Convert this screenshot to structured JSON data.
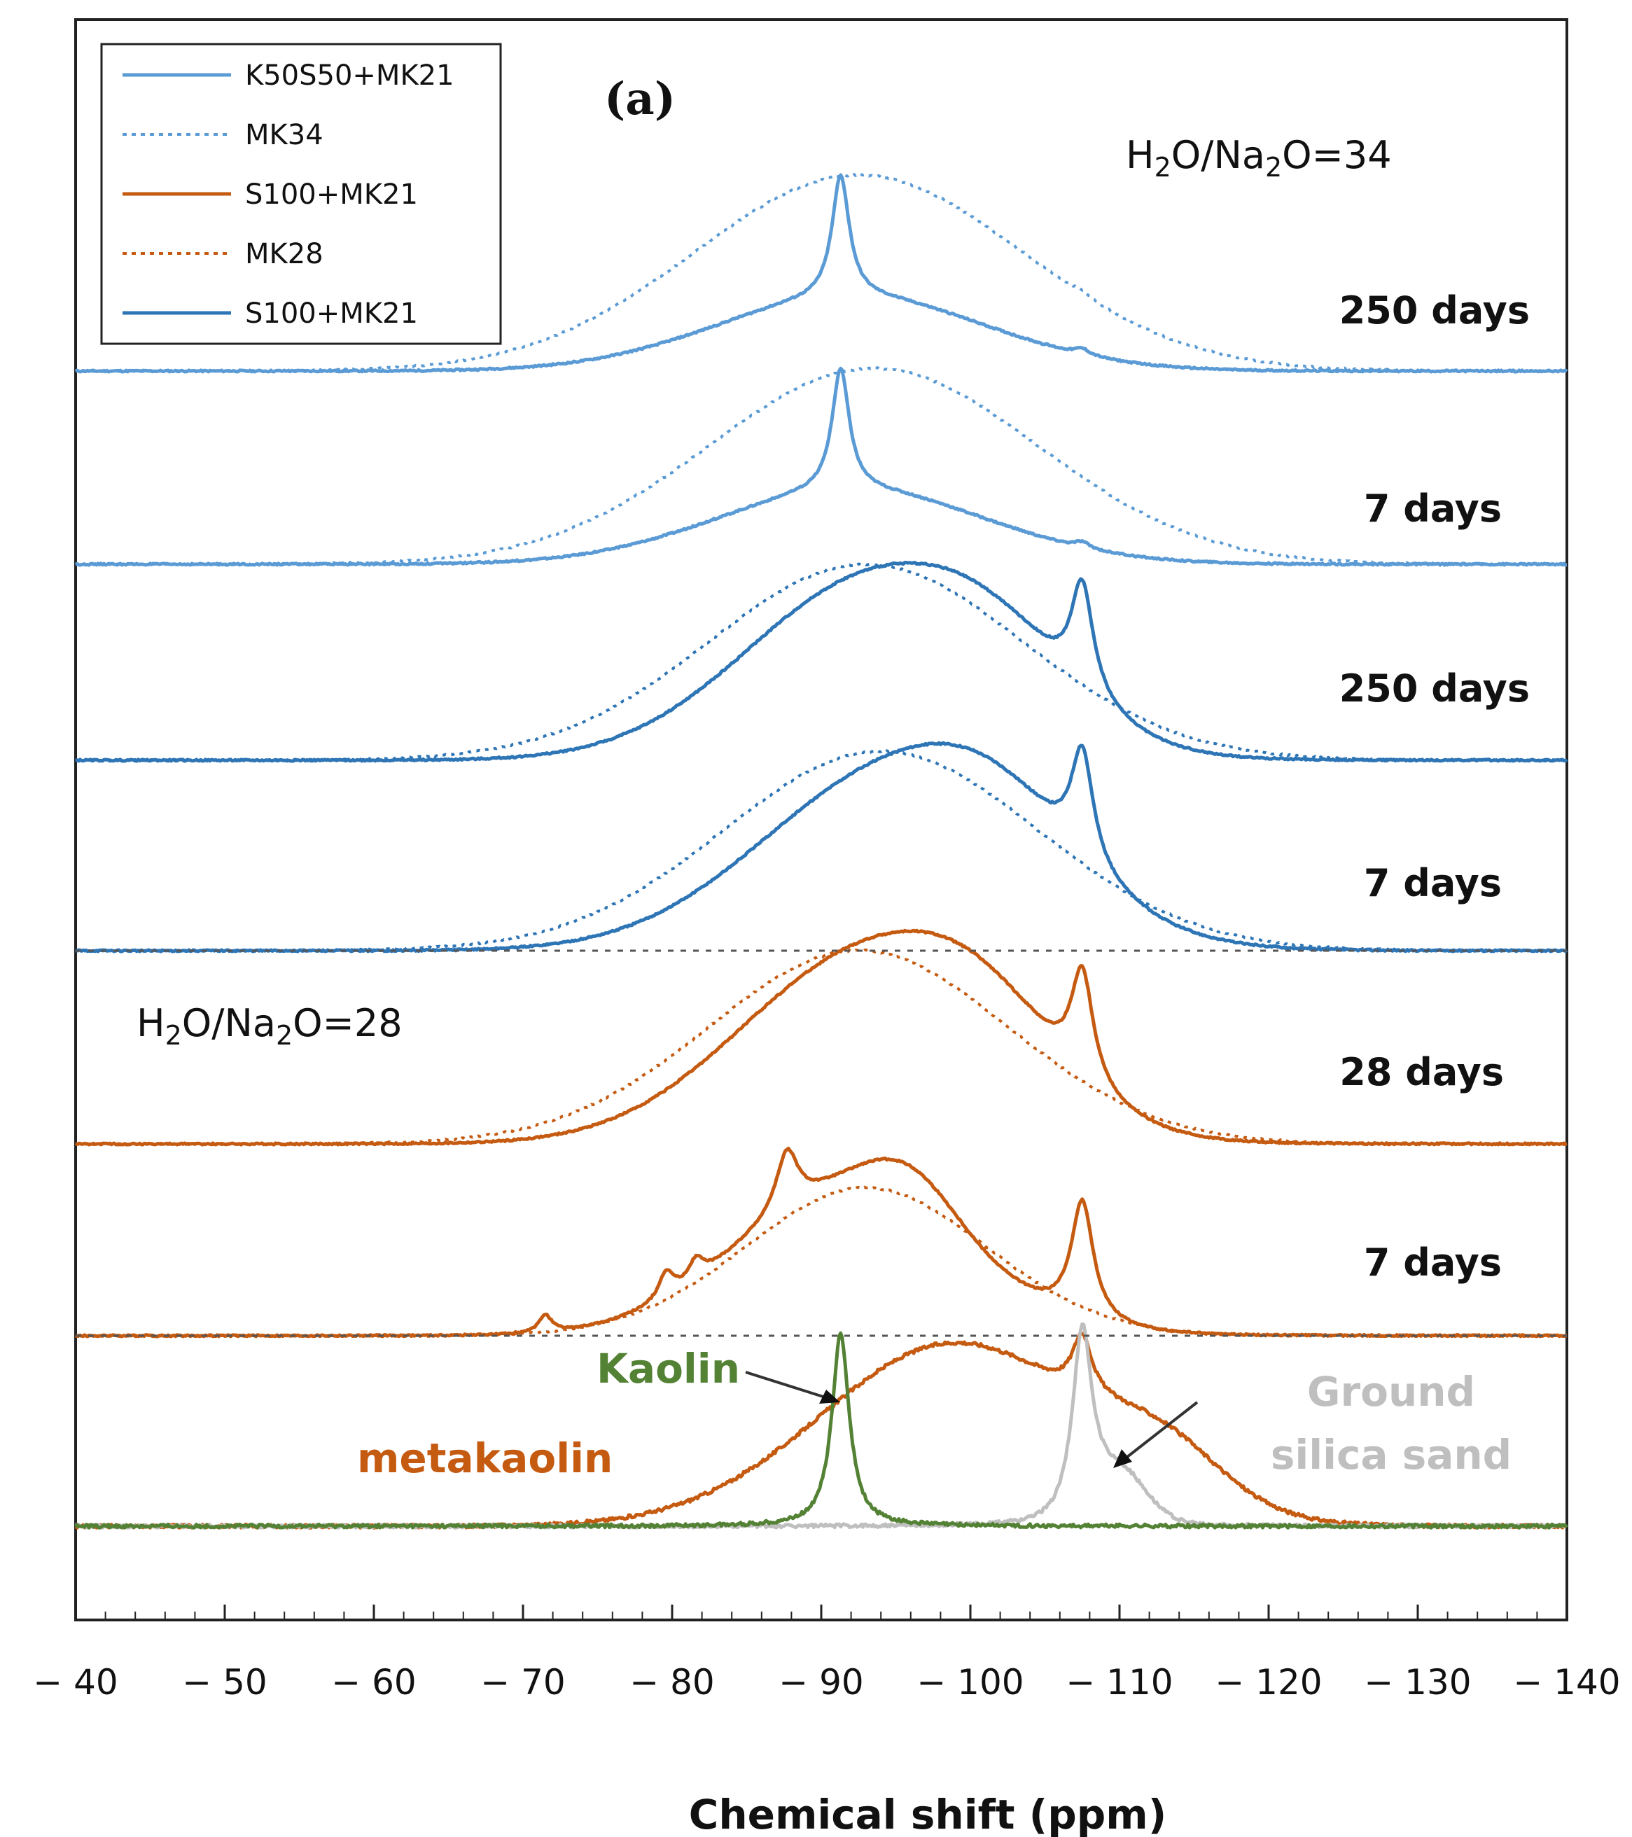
{
  "chart_data": {
    "type": "line",
    "panel_label": "(a)",
    "xlabel": "Chemical shift (ppm)",
    "xlim": [
      -40,
      -140
    ],
    "x_ticks": [
      -40,
      -50,
      -60,
      -70,
      -80,
      -90,
      -100,
      -110,
      -120,
      -130,
      -140
    ],
    "y_axis": "stacked offsets, arbitrary intensity (no ticks)",
    "ratio_labels": [
      {
        "prefix": "H",
        "sub1": "2",
        "mid": "O/Na",
        "sub2": "2",
        "suffix": "O=34"
      },
      {
        "prefix": "H",
        "sub1": "2",
        "mid": "O/Na",
        "sub2": "2",
        "suffix": "O=28"
      }
    ],
    "legend": [
      {
        "label": "K50S50+MK21",
        "color": "#5b9bd5",
        "style": "solid"
      },
      {
        "label": "MK34",
        "color": "#5b9bd5",
        "style": "dotted"
      },
      {
        "label": "S100+MK21",
        "color": "#c55a11",
        "style": "solid"
      },
      {
        "label": "MK28",
        "color": "#c55a11",
        "style": "dotted"
      },
      {
        "label": "S100+MK21",
        "color": "#2e75b6",
        "style": "solid"
      }
    ],
    "stack_labels": [
      "250 days",
      "7 days",
      "250 days",
      "7 days",
      "28 days",
      "7 days"
    ],
    "annotations": [
      {
        "text": "Kaolin",
        "color": "#548235"
      },
      {
        "text": "metakaolin",
        "color": "#c55a11"
      },
      {
        "text": "Ground",
        "color": "#bfbfbf"
      },
      {
        "text": "silica sand",
        "color": "#bfbfbf"
      }
    ],
    "series": [
      {
        "name": "K50S50+MK21 250 days",
        "group": 0,
        "color": "#5b9bd5",
        "style": "solid",
        "peaks": [
          {
            "center": -91.3,
            "width": 0.7,
            "height": 0.62,
            "shape": "lorentz"
          },
          {
            "center": -92,
            "width": 9,
            "height": 0.38,
            "shape": "gauss"
          },
          {
            "center": -107.5,
            "width": 0.6,
            "height": 0.03,
            "shape": "lorentz"
          }
        ]
      },
      {
        "name": "MK34 250 days",
        "group": 0,
        "color": "#5b9bd5",
        "style": "dotted",
        "peaks": [
          {
            "center": -92.5,
            "width": 11,
            "height": 1.0,
            "shape": "gauss"
          },
          {
            "center": -107.5,
            "width": 0.6,
            "height": 0.02,
            "shape": "lorentz"
          }
        ]
      },
      {
        "name": "K50S50+MK21 7 days",
        "group": 1,
        "color": "#5b9bd5",
        "style": "solid",
        "peaks": [
          {
            "center": -91.3,
            "width": 0.7,
            "height": 0.62,
            "shape": "lorentz"
          },
          {
            "center": -92,
            "width": 9,
            "height": 0.38,
            "shape": "gauss"
          },
          {
            "center": -107.5,
            "width": 0.6,
            "height": 0.03,
            "shape": "lorentz"
          }
        ]
      },
      {
        "name": "MK34 7 days",
        "group": 1,
        "color": "#5b9bd5",
        "style": "dotted",
        "peaks": [
          {
            "center": -93.5,
            "width": 11,
            "height": 1.0,
            "shape": "gauss"
          }
        ]
      },
      {
        "name": "S100+MK21 250 days (blue)",
        "group": 2,
        "color": "#2e75b6",
        "style": "solid",
        "peaks": [
          {
            "center": -93.5,
            "width": 8.5,
            "height": 0.92,
            "shape": "gauss"
          },
          {
            "center": -102,
            "width": 5,
            "height": 0.25,
            "shape": "gauss"
          },
          {
            "center": -107.5,
            "width": 0.9,
            "height": 0.55,
            "shape": "lorentz"
          }
        ]
      },
      {
        "name": "MK34 250 days (blue panel)",
        "group": 2,
        "color": "#2e75b6",
        "style": "dotted",
        "peaks": [
          {
            "center": -93,
            "width": 10.5,
            "height": 1.0,
            "shape": "gauss"
          }
        ]
      },
      {
        "name": "S100+MK21 7 days (blue)",
        "group": 3,
        "color": "#2e75b6",
        "style": "solid",
        "peaks": [
          {
            "center": -95,
            "width": 9,
            "height": 0.9,
            "shape": "gauss"
          },
          {
            "center": -102,
            "width": 5,
            "height": 0.25,
            "shape": "gauss"
          },
          {
            "center": -107.5,
            "width": 0.9,
            "height": 0.55,
            "shape": "lorentz"
          }
        ]
      },
      {
        "name": "MK34 7 days (blue panel)",
        "group": 3,
        "color": "#2e75b6",
        "style": "dotted",
        "peaks": [
          {
            "center": -94,
            "width": 10.5,
            "height": 1.0,
            "shape": "gauss"
          }
        ]
      },
      {
        "name": "S100+MK21 28 days",
        "group": 4,
        "color": "#c55a11",
        "style": "solid",
        "peaks": [
          {
            "center": -93,
            "width": 8.5,
            "height": 0.95,
            "shape": "gauss"
          },
          {
            "center": -101,
            "width": 5,
            "height": 0.3,
            "shape": "gauss"
          },
          {
            "center": -107.5,
            "width": 0.9,
            "height": 0.55,
            "shape": "lorentz"
          }
        ]
      },
      {
        "name": "MK28 28 days",
        "group": 4,
        "color": "#c55a11",
        "style": "dotted",
        "peaks": [
          {
            "center": -92.5,
            "width": 10,
            "height": 0.98,
            "shape": "gauss"
          }
        ]
      },
      {
        "name": "S100+MK21 7 days",
        "group": 5,
        "color": "#c55a11",
        "style": "solid",
        "peaks": [
          {
            "center": -87.7,
            "width": 0.9,
            "height": 0.3,
            "shape": "lorentz"
          },
          {
            "center": -92,
            "width": 7.5,
            "height": 0.75,
            "shape": "gauss"
          },
          {
            "center": -96,
            "width": 3,
            "height": 0.2,
            "shape": "gauss"
          },
          {
            "center": -79.6,
            "width": 0.6,
            "height": 0.13,
            "shape": "lorentz"
          },
          {
            "center": -81.6,
            "width": 0.6,
            "height": 0.1,
            "shape": "lorentz"
          },
          {
            "center": -71.5,
            "width": 0.5,
            "height": 0.09,
            "shape": "lorentz"
          },
          {
            "center": -107.5,
            "width": 0.9,
            "height": 0.6,
            "shape": "lorentz"
          }
        ]
      },
      {
        "name": "MK28 7 days",
        "group": 5,
        "color": "#c55a11",
        "style": "dotted",
        "peaks": [
          {
            "center": -93,
            "width": 8,
            "height": 0.75,
            "shape": "gauss"
          }
        ]
      },
      {
        "name": "metakaolin",
        "group": 6,
        "color": "#c55a11",
        "style": "solid",
        "peaks": [
          {
            "center": -99,
            "width": 9,
            "height": 0.95,
            "shape": "gauss"
          },
          {
            "center": -107.5,
            "width": 0.8,
            "height": 0.3,
            "shape": "lorentz"
          },
          {
            "center": -113,
            "width": 4,
            "height": 0.25,
            "shape": "gauss"
          }
        ]
      },
      {
        "name": "Ground silica sand",
        "group": 6,
        "color": "#bfbfbf",
        "style": "solid",
        "peaks": [
          {
            "center": -107.5,
            "width": 0.8,
            "height": 0.95,
            "shape": "lorentz"
          },
          {
            "center": -110,
            "width": 1.8,
            "height": 0.25,
            "shape": "gauss"
          }
        ]
      },
      {
        "name": "Kaolin",
        "group": 6,
        "color": "#548235",
        "style": "solid",
        "peaks": [
          {
            "center": -91.3,
            "width": 0.7,
            "height": 1.0,
            "shape": "lorentz"
          }
        ]
      }
    ]
  }
}
